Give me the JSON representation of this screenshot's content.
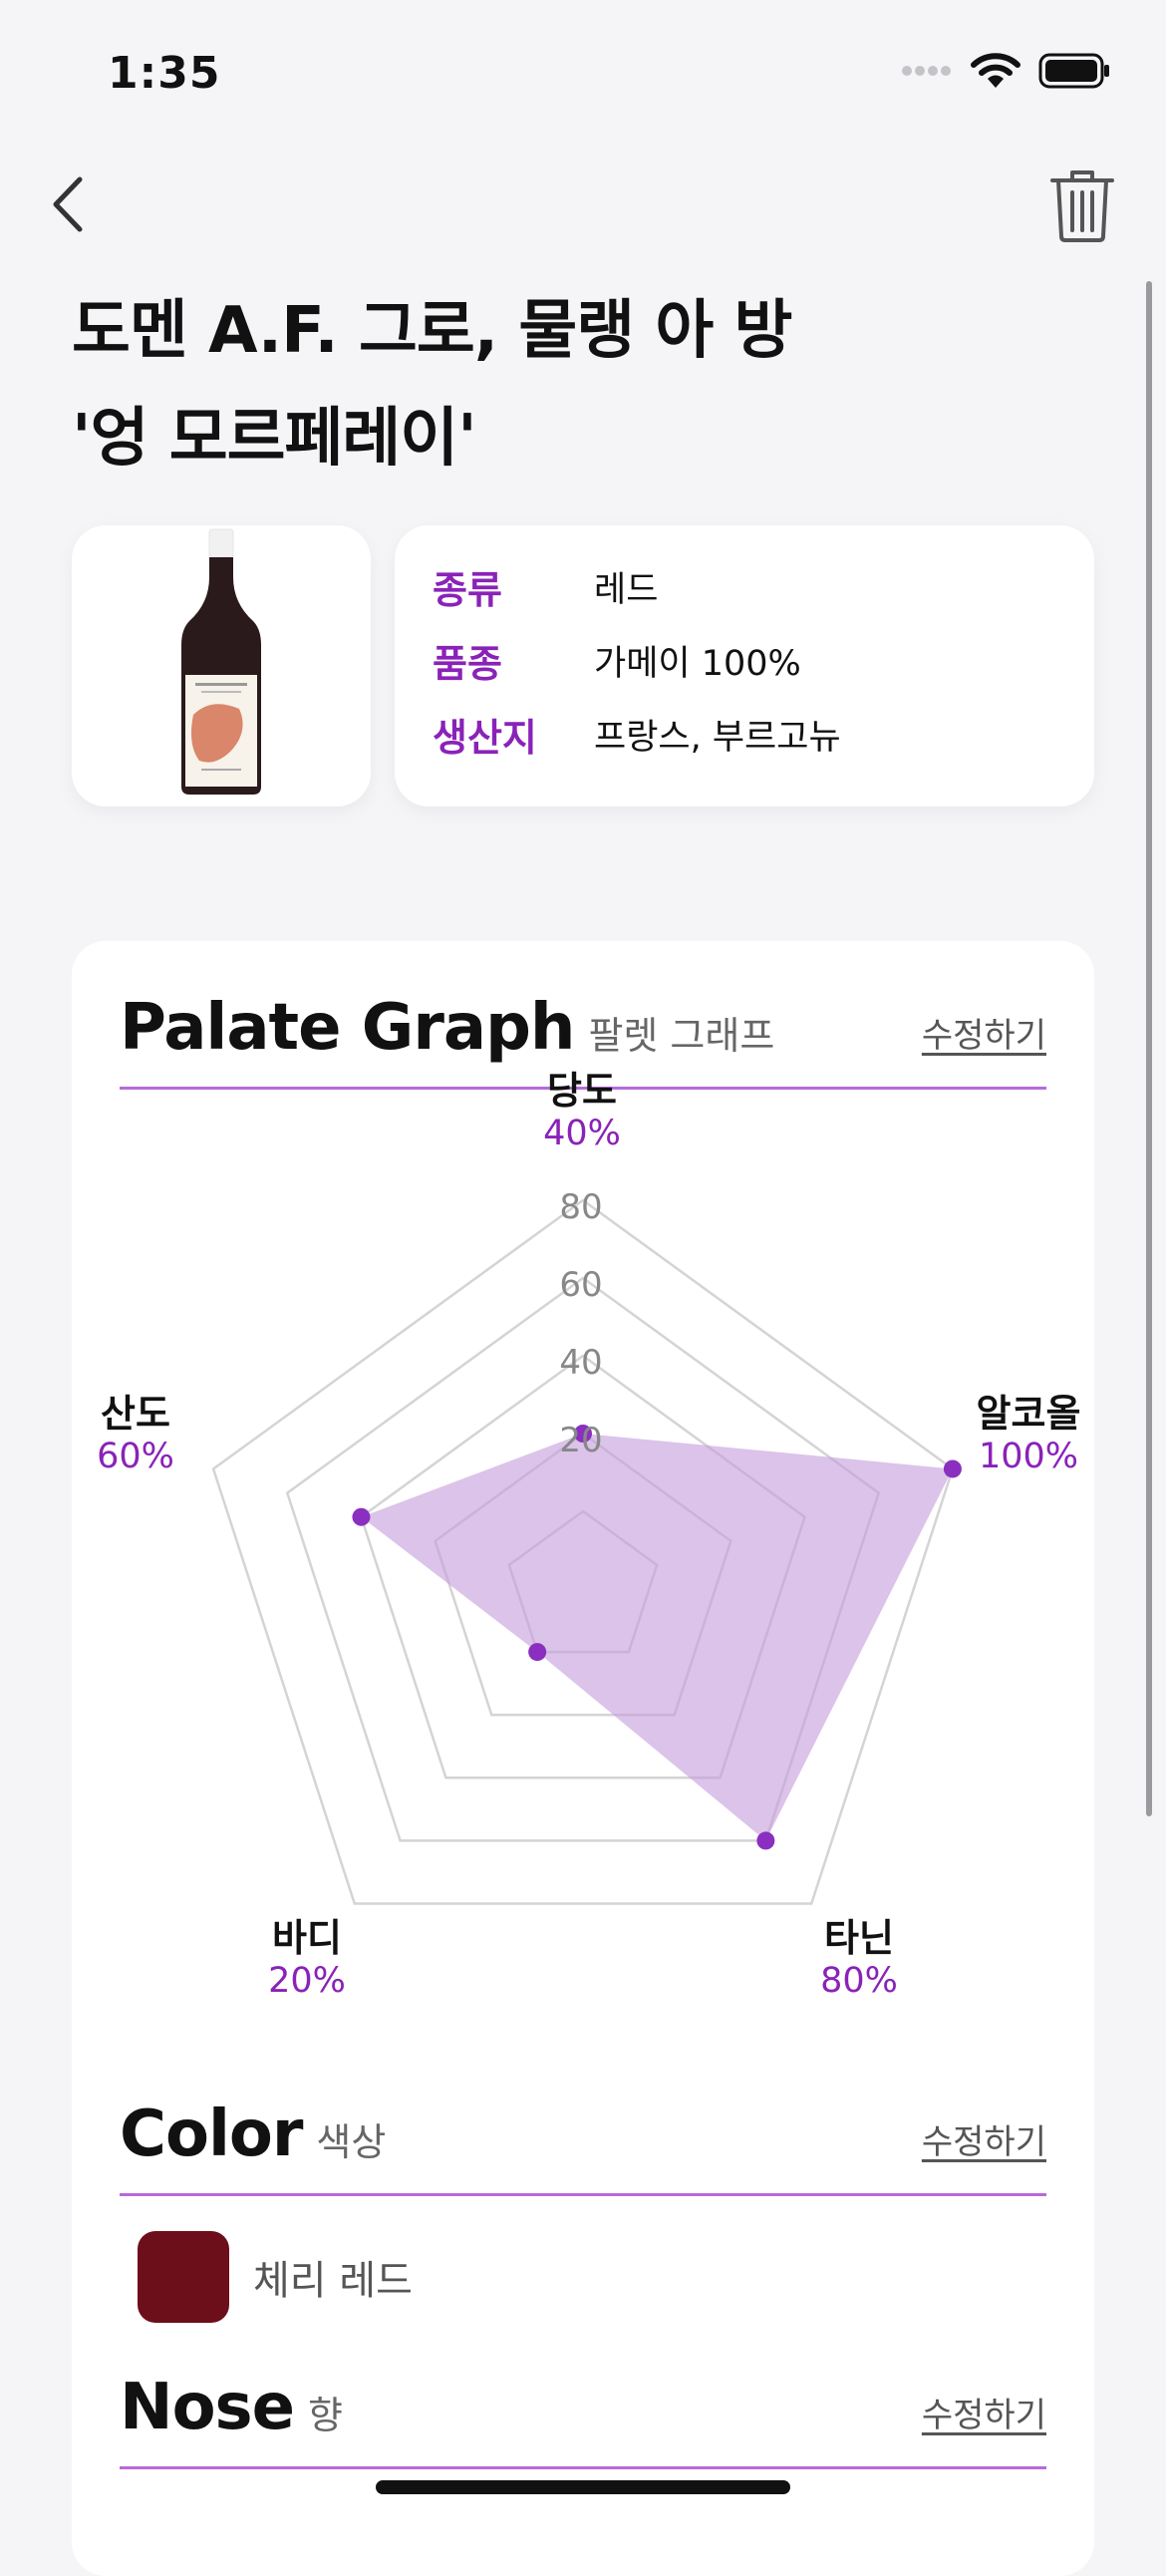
{
  "status_bar": {
    "time": "1:35"
  },
  "wine": {
    "title_line1": "도멘 A.F. 그로, 물랭 아 방",
    "title_line2": "'엉 모르페레이'"
  },
  "info": [
    {
      "label": "종류",
      "value": "레드"
    },
    {
      "label": "품종",
      "value": "가메이 100%"
    },
    {
      "label": "생산지",
      "value": "프랑스, 부르고뉴"
    }
  ],
  "palate": {
    "title": "Palate Graph",
    "subtitle": "팔렛 그래프",
    "edit": "수정하기"
  },
  "chart_data": {
    "type": "radar",
    "axes": [
      "당도",
      "알코올",
      "타닌",
      "바디",
      "산도"
    ],
    "values": [
      40,
      100,
      80,
      20,
      60
    ],
    "value_labels": [
      "40%",
      "100%",
      "80%",
      "20%",
      "60%"
    ],
    "ring_labels": [
      "20",
      "40",
      "60",
      "80"
    ],
    "rings": [
      20,
      40,
      60,
      80,
      100
    ],
    "max": 100,
    "fill_color": "#c39bdc",
    "point_color": "#8a2fbf"
  },
  "color": {
    "title": "Color",
    "subtitle": "색상",
    "edit": "수정하기",
    "swatch_name": "체리 레드",
    "swatch_hex": "#6d0e1b"
  },
  "nose": {
    "title": "Nose",
    "subtitle": "향",
    "edit": "수정하기"
  },
  "icons": {
    "back": "chevron-left-icon",
    "delete": "trash-icon"
  },
  "accent": "#8a22b8"
}
